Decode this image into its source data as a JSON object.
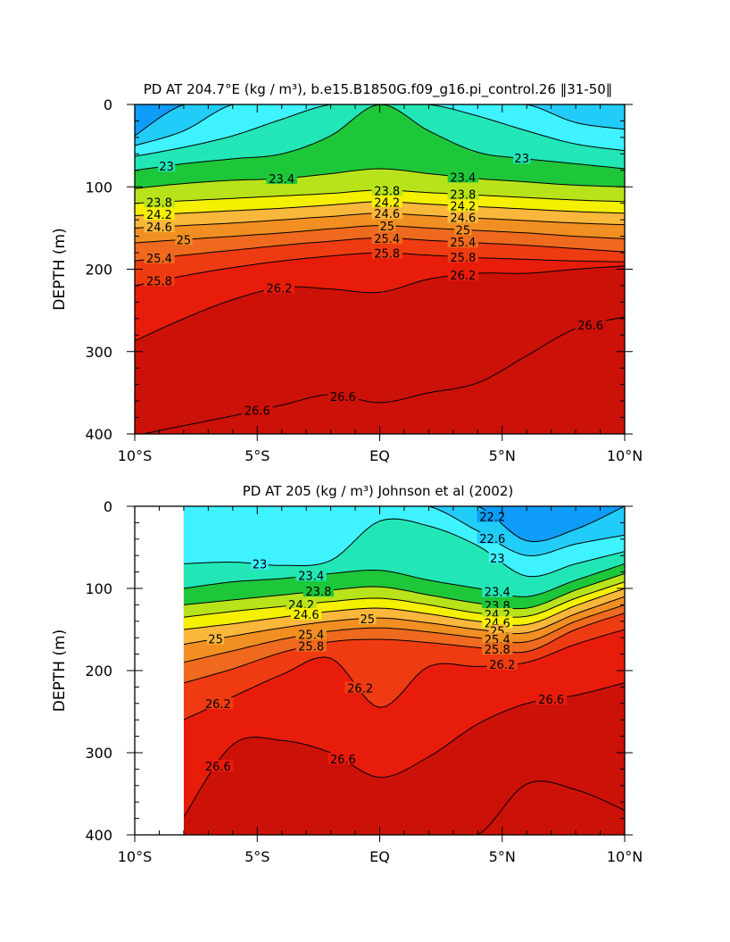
{
  "colors": {
    "deep_purple": "#6a1fd8",
    "blue": "#0b1cf0",
    "mid_blue": "#0a54f7",
    "sky_blue": "#0d9cf7",
    "light_cyan": "#22ccf8",
    "cyan": "#3ff2ff",
    "aqua_green": "#22e6b6",
    "green": "#1ec73a",
    "yellow_green": "#b8e31a",
    "yellow": "#f4f000",
    "light_orange": "#f9b73b",
    "orange": "#f28f23",
    "dark_orange": "#ef6a1e",
    "red_orange": "#ef3b12",
    "red": "#e81c0b",
    "dark_red": "#cc1108"
  },
  "chart_data": [
    {
      "type": "contour",
      "title": "PD AT 204.7°E (kg / m³), b.e15.B1850G.f09_g16.pi_control.26 ‖31-50‖",
      "ylabel": "DEPTH (m)",
      "xlabel": "",
      "xlim": [
        -10,
        10
      ],
      "ylim": [
        400,
        0
      ],
      "x_ticks": [
        -10,
        -5,
        0,
        5,
        10
      ],
      "x_tick_labels": [
        "10°S",
        "5°S",
        "EQ",
        "5°N",
        "10°N"
      ],
      "y_ticks": [
        0,
        100,
        200,
        300,
        400
      ],
      "y_tick_labels": [
        "0",
        "100",
        "200",
        "300",
        "400"
      ],
      "data_xrange": [
        -10,
        10
      ],
      "x": [
        -10,
        -8,
        -6,
        -4,
        -2,
        0,
        2,
        4,
        6,
        8,
        10
      ],
      "contour_interval": 0.4,
      "levels": [
        21.8,
        22.2,
        22.6,
        23.0,
        23.4,
        23.8,
        24.2,
        24.6,
        25.0,
        25.4,
        25.8,
        26.2,
        26.6
      ],
      "isopycnal_depths": [
        {
          "level": 21.8,
          "depths": [
            38,
            0,
            0,
            0,
            0,
            0,
            0,
            0,
            0,
            0,
            0
          ]
        },
        {
          "level": 22.2,
          "depths": [
            50,
            32,
            0,
            0,
            0,
            0,
            0,
            0,
            0,
            22,
            30
          ]
        },
        {
          "level": 22.6,
          "depths": [
            63,
            52,
            38,
            18,
            0,
            0,
            0,
            14,
            32,
            48,
            56
          ]
        },
        {
          "level": 23.0,
          "depths": [
            80,
            72,
            66,
            60,
            38,
            0,
            32,
            58,
            66,
            72,
            78
          ]
        },
        {
          "level": 23.4,
          "depths": [
            102,
            96,
            92,
            90,
            84,
            78,
            84,
            90,
            94,
            98,
            100
          ]
        },
        {
          "level": 23.8,
          "depths": [
            120,
            117,
            114,
            111,
            108,
            104,
            107,
            110,
            113,
            116,
            118
          ]
        },
        {
          "level": 24.2,
          "depths": [
            135,
            132,
            129,
            126,
            122,
            118,
            121,
            124,
            127,
            130,
            132
          ]
        },
        {
          "level": 24.6,
          "depths": [
            150,
            147,
            144,
            140,
            136,
            132,
            135,
            138,
            141,
            144,
            146
          ]
        },
        {
          "level": 25.0,
          "depths": [
            168,
            164,
            160,
            156,
            151,
            147,
            150,
            153,
            156,
            160,
            163
          ]
        },
        {
          "level": 25.4,
          "depths": [
            190,
            183,
            177,
            171,
            166,
            162,
            165,
            168,
            171,
            175,
            179
          ]
        },
        {
          "level": 25.8,
          "depths": [
            220,
            208,
            198,
            190,
            184,
            180,
            183,
            186,
            188,
            190,
            191
          ]
        },
        {
          "level": 26.2,
          "depths": [
            287,
            260,
            237,
            222,
            224,
            228,
            212,
            205,
            205,
            200,
            196
          ]
        },
        {
          "level": 26.6,
          "depths": [
            402,
            390,
            378,
            365,
            352,
            362,
            350,
            338,
            305,
            272,
            258
          ]
        }
      ],
      "line_labels": [
        "23",
        "23.4",
        "23.8",
        "24.2",
        "24.6",
        "25",
        "25.4",
        "25.8",
        "26.2",
        "26.6"
      ]
    },
    {
      "type": "contour",
      "title": "PD AT 205 (kg / m³) Johnson et al (2002)",
      "ylabel": "DEPTH (m)",
      "xlabel": "",
      "xlim": [
        -10,
        10
      ],
      "ylim": [
        400,
        0
      ],
      "x_ticks": [
        -10,
        -5,
        0,
        5,
        10
      ],
      "x_tick_labels": [
        "10°S",
        "5°S",
        "EQ",
        "5°N",
        "10°N"
      ],
      "y_ticks": [
        0,
        100,
        200,
        300,
        400
      ],
      "y_tick_labels": [
        "0",
        "100",
        "200",
        "300",
        "400"
      ],
      "data_xrange": [
        -8,
        10
      ],
      "x": [
        -8,
        -6,
        -4,
        -2,
        0,
        2,
        4,
        6,
        8,
        10
      ],
      "contour_interval": 0.4,
      "levels": [
        21.8,
        22.2,
        22.6,
        23.0,
        23.4,
        23.8,
        24.2,
        24.6,
        25.0,
        25.4,
        25.8,
        26.2,
        26.6,
        27.0
      ],
      "isopycnal_depths": [
        {
          "level": 21.8,
          "depths": [
            0,
            0,
            0,
            0,
            0,
            0,
            0,
            0,
            0,
            0
          ]
        },
        {
          "level": 22.2,
          "depths": [
            0,
            0,
            0,
            0,
            0,
            0,
            0,
            42,
            28,
            0
          ]
        },
        {
          "level": 22.6,
          "depths": [
            0,
            0,
            0,
            0,
            0,
            0,
            30,
            60,
            46,
            35
          ]
        },
        {
          "level": 23.0,
          "depths": [
            70,
            68,
            72,
            66,
            18,
            24,
            48,
            85,
            70,
            55
          ]
        },
        {
          "level": 23.4,
          "depths": [
            100,
            92,
            88,
            82,
            78,
            90,
            100,
            110,
            90,
            70
          ]
        },
        {
          "level": 23.8,
          "depths": [
            120,
            114,
            108,
            102,
            98,
            108,
            118,
            124,
            102,
            82
          ]
        },
        {
          "level": 24.2,
          "depths": [
            135,
            128,
            122,
            116,
            112,
            120,
            130,
            134,
            112,
            92
          ]
        },
        {
          "level": 24.6,
          "depths": [
            150,
            143,
            135,
            128,
            124,
            131,
            140,
            144,
            121,
            100
          ]
        },
        {
          "level": 25.0,
          "depths": [
            168,
            158,
            148,
            140,
            136,
            142,
            150,
            154,
            131,
            110
          ]
        },
        {
          "level": 25.4,
          "depths": [
            190,
            176,
            162,
            152,
            148,
            153,
            160,
            165,
            140,
            120
          ]
        },
        {
          "level": 25.8,
          "depths": [
            215,
            198,
            178,
            165,
            162,
            166,
            172,
            177,
            150,
            130
          ]
        },
        {
          "level": 26.2,
          "depths": [
            260,
            232,
            205,
            185,
            245,
            195,
            195,
            190,
            168,
            150
          ]
        },
        {
          "level": 26.6,
          "depths": [
            378,
            290,
            285,
            300,
            330,
            305,
            265,
            240,
            230,
            215
          ]
        },
        {
          "level": 27.0,
          "depths": [
            400,
            400,
            400,
            400,
            400,
            400,
            400,
            338,
            345,
            370
          ]
        }
      ],
      "line_labels": [
        "22.2",
        "22.6",
        "23",
        "23.4",
        "23.8",
        "24.2",
        "24.6",
        "25",
        "25.4",
        "25.8",
        "26.2",
        "26.6"
      ]
    }
  ]
}
